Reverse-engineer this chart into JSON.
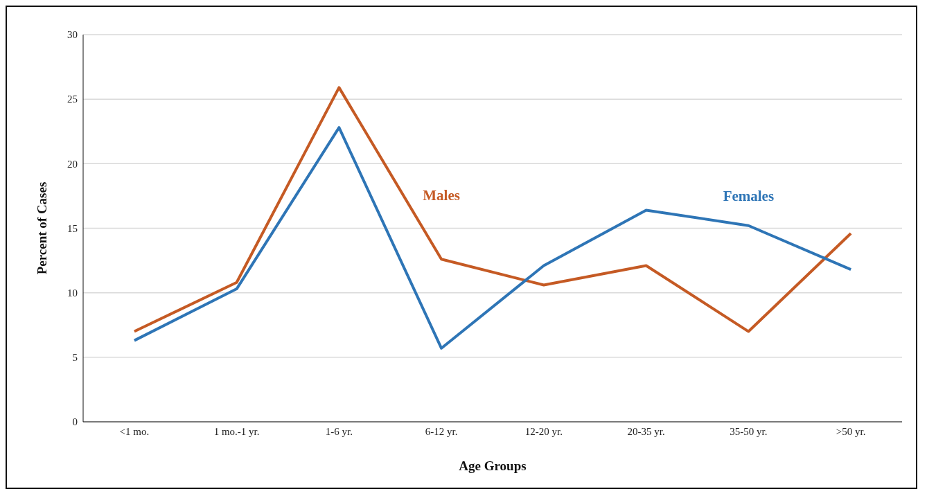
{
  "chart_data": {
    "type": "line",
    "xlabel": "Age Groups",
    "ylabel": "Percent of Cases",
    "categories": [
      "<1 mo.",
      "1 mo.-1 yr.",
      "1-6 yr.",
      "6-12 yr.",
      "12-20 yr.",
      "20-35 yr.",
      "35-50 yr.",
      ">50 yr."
    ],
    "series": [
      {
        "name": "Males",
        "color": "#c55a24",
        "values": [
          7.0,
          10.8,
          25.9,
          12.6,
          10.6,
          12.1,
          7.0,
          14.6
        ]
      },
      {
        "name": "Females",
        "color": "#2e75b6",
        "values": [
          6.3,
          10.3,
          22.8,
          5.7,
          12.1,
          16.4,
          15.2,
          11.8
        ]
      }
    ],
    "ylim": [
      0,
      30
    ],
    "yticks": [
      0,
      5,
      10,
      15,
      20,
      25,
      30
    ],
    "grid": "y",
    "legend": false,
    "marker": "none",
    "line_style": "solid"
  }
}
